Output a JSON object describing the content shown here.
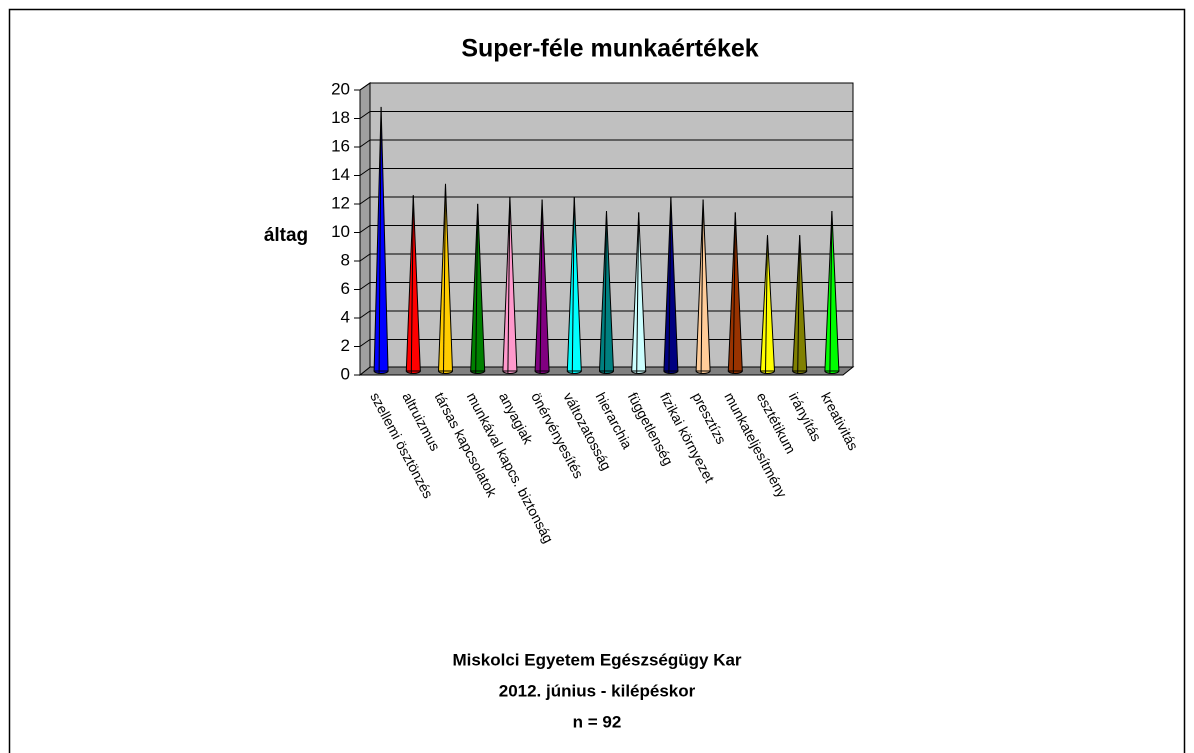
{
  "chart_data": {
    "type": "bar3d_cone",
    "title": "Super-féle munkaértékek",
    "y_label": "áltag",
    "annotations": [
      "Miskolci Egyetem Egészségügy Kar",
      "2012. június - kilépéskor",
      "n = 92"
    ],
    "categories": [
      "szellemi ösztönzés",
      "altruizmus",
      "társas kapcsolatok",
      "munkával kapcs. biztonság",
      "anyagiak",
      "önérvényesítés",
      "változatosság",
      "hierarchia",
      "függetlenség",
      "fizikai környezet",
      "presztízs",
      "munkateljesítmény",
      "esztétikum",
      "irányítás",
      "kreativitás"
    ],
    "values": [
      18.6,
      12.4,
      13.2,
      11.8,
      12.3,
      12.1,
      12.3,
      11.3,
      11.2,
      12.3,
      12.1,
      11.2,
      9.6,
      9.6,
      11.3
    ],
    "colors": [
      "#0000ff",
      "#ff0000",
      "#ffcc00",
      "#008000",
      "#ff99cc",
      "#800080",
      "#00ffff",
      "#008080",
      "#ccffff",
      "#000080",
      "#ffcc99",
      "#993300",
      "#ffff00",
      "#808000",
      "#00ff00"
    ],
    "ylim": [
      0,
      20
    ],
    "yticks": [
      0,
      2,
      4,
      6,
      8,
      10,
      12,
      14,
      16,
      18,
      20
    ],
    "grid": true
  }
}
